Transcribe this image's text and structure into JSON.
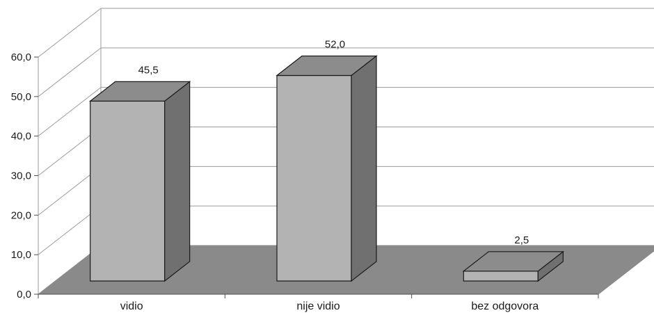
{
  "chart_data": {
    "type": "bar",
    "style": "3d",
    "categories": [
      "vidio",
      "nije vidio",
      "bez odgovora"
    ],
    "values": [
      45.5,
      52.0,
      2.5
    ],
    "value_labels": [
      "45,5",
      "52,0",
      "2,5"
    ],
    "ylim": [
      0,
      60
    ],
    "y_ticks": [
      0,
      10,
      20,
      30,
      40,
      50,
      60
    ],
    "y_tick_labels": [
      "0,0",
      "10,0",
      "20,0",
      "30,0",
      "40,0",
      "50,0",
      "60,0"
    ],
    "grid": true,
    "colors": {
      "bar_front": "#b3b3b3",
      "bar_top": "#8c8c8c",
      "bar_side": "#707070",
      "floor": "#8a8a8a",
      "grid": "#9a9a9a",
      "outline": "#1a1a1a"
    }
  }
}
